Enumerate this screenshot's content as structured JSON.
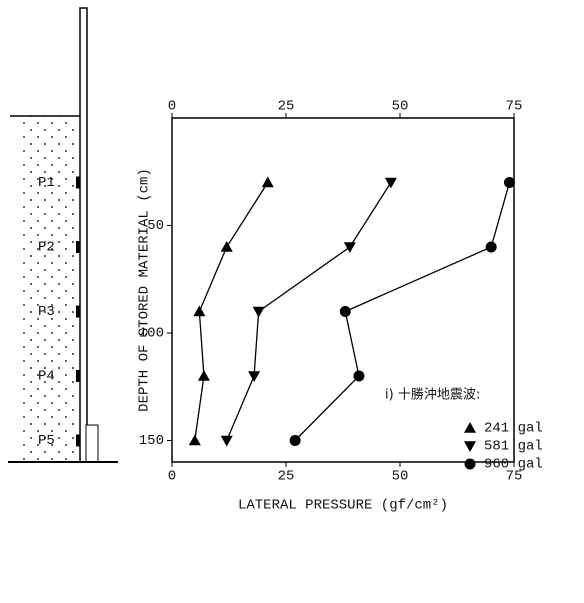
{
  "chart_data": {
    "type": "line",
    "xlabel": "LATERAL PRESSURE (gf/cm²)",
    "ylabel": "DEPTH OF STORED MATERIAL (cm)",
    "annotation": "i) 十勝沖地震波:",
    "sensor_labels": [
      "P1",
      "P2",
      "P3",
      "P4",
      "P5"
    ],
    "y": [
      30,
      60,
      90,
      120,
      150
    ],
    "series": [
      {
        "name": "241 gal",
        "marker": "triangle-up",
        "color": "#000000",
        "values": [
          21,
          12,
          6,
          7,
          5
        ]
      },
      {
        "name": "581 gal",
        "marker": "triangle-down",
        "color": "#000000",
        "values": [
          48,
          39,
          19,
          18,
          12
        ]
      },
      {
        "name": "960 gal",
        "marker": "circle",
        "color": "#000000",
        "values": [
          74,
          70,
          38,
          41,
          27
        ]
      }
    ],
    "xlim": [
      0,
      75
    ],
    "xticks": [
      0,
      25,
      50,
      75
    ],
    "ylim": [
      0,
      160
    ],
    "yticks": [
      50,
      100,
      150
    ],
    "y_inverted": true
  }
}
